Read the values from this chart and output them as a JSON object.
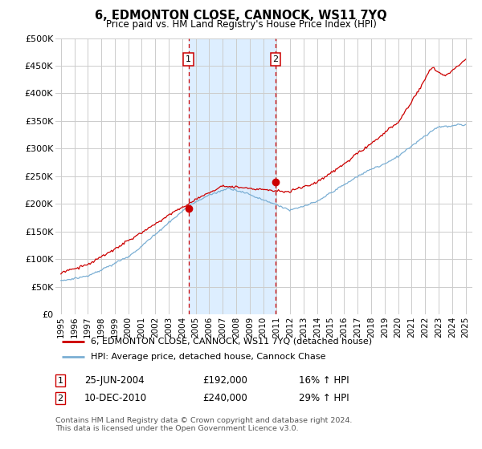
{
  "title": "6, EDMONTON CLOSE, CANNOCK, WS11 7YQ",
  "subtitle": "Price paid vs. HM Land Registry's House Price Index (HPI)",
  "legend_label_red": "6, EDMONTON CLOSE, CANNOCK, WS11 7YQ (detached house)",
  "legend_label_blue": "HPI: Average price, detached house, Cannock Chase",
  "annotation1_label": "1",
  "annotation1_date": "25-JUN-2004",
  "annotation1_price": "£192,000",
  "annotation1_hpi": "16% ↑ HPI",
  "annotation2_label": "2",
  "annotation2_date": "10-DEC-2010",
  "annotation2_price": "£240,000",
  "annotation2_hpi": "29% ↑ HPI",
  "footer": "Contains HM Land Registry data © Crown copyright and database right 2024.\nThis data is licensed under the Open Government Licence v3.0.",
  "ylim": [
    0,
    500000
  ],
  "yticks": [
    0,
    50000,
    100000,
    150000,
    200000,
    250000,
    300000,
    350000,
    400000,
    450000,
    500000
  ],
  "ytick_labels": [
    "£0",
    "£50K",
    "£100K",
    "£150K",
    "£200K",
    "£250K",
    "£300K",
    "£350K",
    "£400K",
    "£450K",
    "£500K"
  ],
  "color_red": "#cc0000",
  "color_blue": "#7bafd4",
  "color_highlight": "#ddeeff",
  "vline_color": "#cc0000",
  "background_color": "#ffffff",
  "grid_color": "#cccccc",
  "sale1_year": 2004.46,
  "sale1_price": 192000,
  "sale2_year": 2010.92,
  "sale2_price": 240000
}
